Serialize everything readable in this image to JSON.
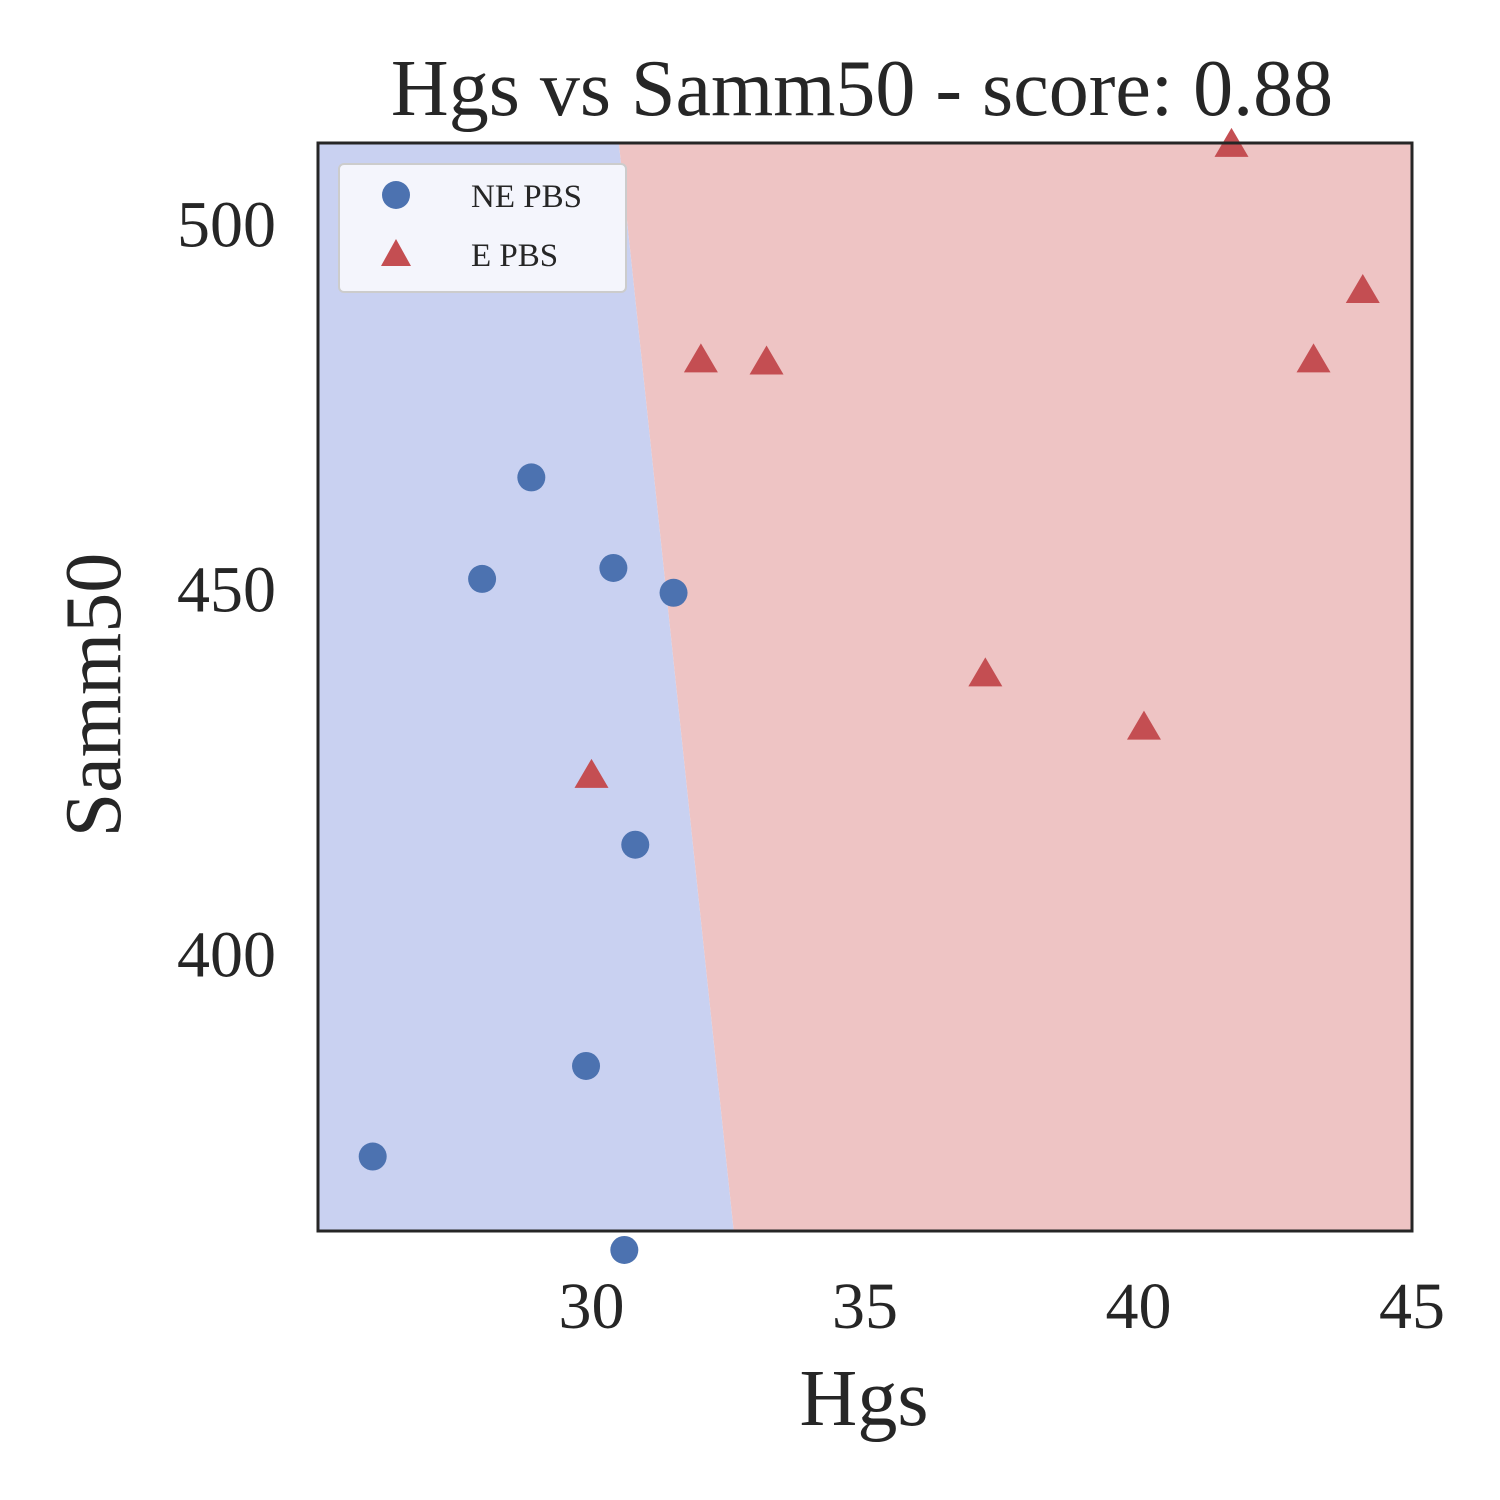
{
  "chart_data": {
    "type": "scatter",
    "title": "Hgs vs Samm50 - score: 0.88",
    "xlabel": "Hgs",
    "ylabel": "Samm50",
    "xlim": [
      25,
      45
    ],
    "ylim": [
      362,
      511
    ],
    "xticks": [
      30,
      35,
      40,
      45
    ],
    "yticks": [
      400,
      450,
      500
    ],
    "grid": false,
    "legend_position": "top-left",
    "decision_boundary": {
      "points": [
        [
          30.5,
          511
        ],
        [
          32.6,
          362
        ]
      ],
      "left_region_class": "NE PBS",
      "right_region_class": "E PBS"
    },
    "region_colors": {
      "NE PBS": "#c9d1f1",
      "E PBS": "#eec4c4"
    },
    "series": [
      {
        "name": "NE PBS",
        "marker": "circle",
        "color": "#4c72b0",
        "points": [
          [
            26.0,
            372.2
          ],
          [
            28.0,
            451.3
          ],
          [
            28.9,
            465.2
          ],
          [
            29.9,
            384.6
          ],
          [
            30.4,
            452.8
          ],
          [
            30.6,
            359.4
          ],
          [
            30.8,
            414.9
          ],
          [
            31.5,
            449.4
          ]
        ]
      },
      {
        "name": "E PBS",
        "marker": "triangle",
        "color": "#c44e52",
        "points": [
          [
            30.0,
            424.2
          ],
          [
            32.0,
            481.1
          ],
          [
            33.2,
            480.8
          ],
          [
            37.2,
            438.1
          ],
          [
            40.1,
            430.8
          ],
          [
            41.7,
            510.6
          ],
          [
            43.2,
            481.1
          ],
          [
            44.1,
            490.6
          ]
        ]
      }
    ]
  }
}
